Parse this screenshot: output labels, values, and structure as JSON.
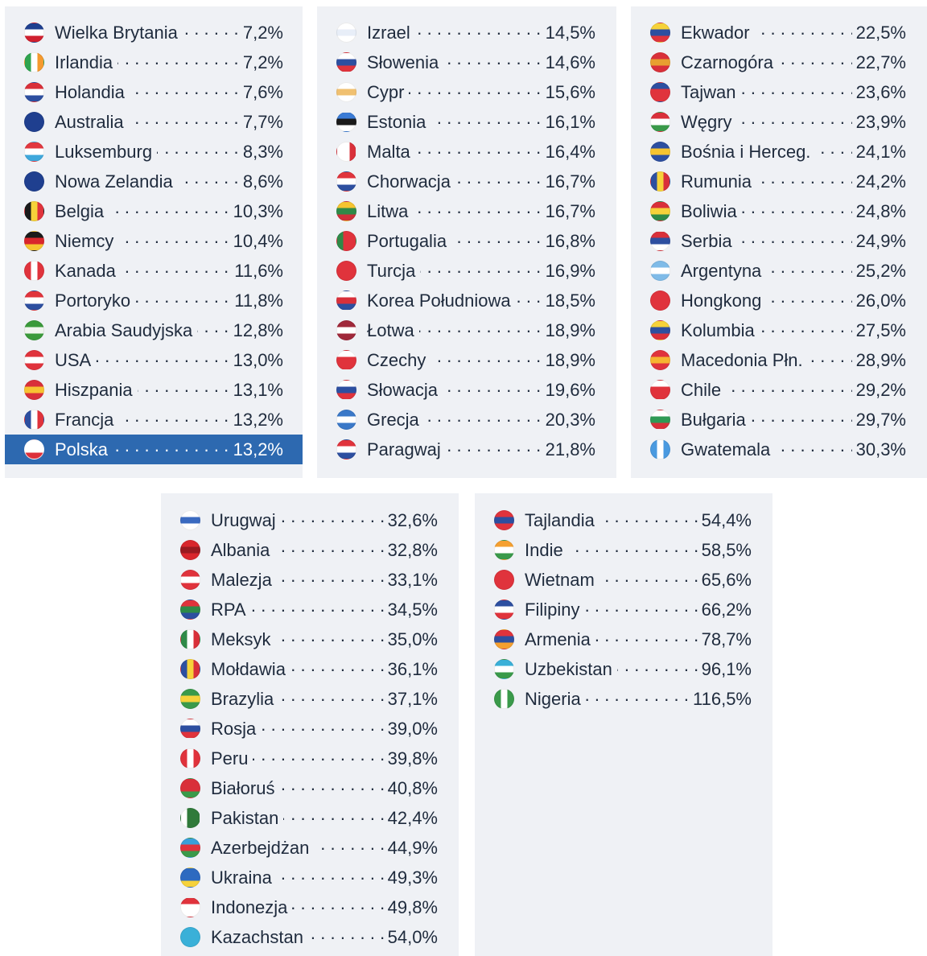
{
  "chart_data": {
    "type": "table",
    "highlight_color": "#2d69b0",
    "panel_color": "#eff1f5",
    "panels": [
      {
        "rows": [
          {
            "country": "Wielka Brytania",
            "value": 7.2,
            "label": "7,2%",
            "flag": [
              "h",
              "#1f3f8f",
              "#ffffff",
              "#d0202f"
            ]
          },
          {
            "country": "Irlandia",
            "value": 7.2,
            "label": "7,2%",
            "flag": [
              "v",
              "#2fa44f",
              "#ffffff",
              "#f59a2e"
            ]
          },
          {
            "country": "Holandia",
            "value": 7.6,
            "label": "7,6%",
            "flag": [
              "h",
              "#d9303a",
              "#ffffff",
              "#2d4fa0"
            ]
          },
          {
            "country": "Australia",
            "value": 7.7,
            "label": "7,7%",
            "flag": [
              "h",
              "#1f3f8f",
              "#1f3f8f",
              "#1f3f8f"
            ]
          },
          {
            "country": "Luksemburg",
            "value": 8.3,
            "label": "8,3%",
            "flag": [
              "h",
              "#e2373f",
              "#ffffff",
              "#3fa8dc"
            ]
          },
          {
            "country": "Nowa Zelandia",
            "value": 8.6,
            "label": "8,6%",
            "flag": [
              "h",
              "#1f3f8f",
              "#1f3f8f",
              "#1f3f8f"
            ]
          },
          {
            "country": "Belgia",
            "value": 10.3,
            "label": "10,3%",
            "flag": [
              "v",
              "#1a1a1a",
              "#f6d23a",
              "#e0333c"
            ]
          },
          {
            "country": "Niemcy",
            "value": 10.4,
            "label": "10,4%",
            "flag": [
              "h",
              "#1a1a1a",
              "#d9262c",
              "#f6c430"
            ]
          },
          {
            "country": "Kanada",
            "value": 11.6,
            "label": "11,6%",
            "flag": [
              "v",
              "#e0333c",
              "#ffffff",
              "#e0333c"
            ]
          },
          {
            "country": "Portoryko",
            "value": 11.8,
            "label": "11,8%",
            "flag": [
              "h",
              "#e0333c",
              "#ffffff",
              "#2d4fa0"
            ]
          },
          {
            "country": "Arabia Saudyjska",
            "value": 12.8,
            "label": "12,8%",
            "flag": [
              "h",
              "#3a9a3a",
              "#f0f5ee",
              "#3a9a3a"
            ]
          },
          {
            "country": "USA",
            "value": 13.0,
            "label": "13,0%",
            "flag": [
              "h",
              "#e0333c",
              "#ffffff",
              "#e0333c"
            ]
          },
          {
            "country": "Hiszpania",
            "value": 13.1,
            "label": "13,1%",
            "flag": [
              "h",
              "#d9303a",
              "#f7c332",
              "#d9303a"
            ]
          },
          {
            "country": "Francja",
            "value": 13.2,
            "label": "13,2%",
            "flag": [
              "v",
              "#2d4fa0",
              "#ffffff",
              "#e0333c"
            ]
          },
          {
            "country": "Polska",
            "value": 13.2,
            "label": "13,2%",
            "flag": [
              "h",
              "#ffffff",
              "#ffffff",
              "#dc2f3a"
            ],
            "highlight": true
          }
        ]
      },
      {
        "rows": [
          {
            "country": "Izrael",
            "value": 14.5,
            "label": "14,5%",
            "flag": [
              "h",
              "#ffffff",
              "#e8eef8",
              "#ffffff"
            ]
          },
          {
            "country": "Słowenia",
            "value": 14.6,
            "label": "14,6%",
            "flag": [
              "h",
              "#ffffff",
              "#2d4fa0",
              "#e0333c"
            ]
          },
          {
            "country": "Cypr",
            "value": 15.6,
            "label": "15,6%",
            "flag": [
              "h",
              "#ffffff",
              "#f0c070",
              "#ffffff"
            ]
          },
          {
            "country": "Estonia",
            "value": 16.1,
            "label": "16,1%",
            "flag": [
              "h",
              "#3a7bd5",
              "#1a1a1a",
              "#ffffff"
            ]
          },
          {
            "country": "Malta",
            "value": 16.4,
            "label": "16,4%",
            "flag": [
              "v",
              "#ffffff",
              "#ffffff",
              "#d9303a"
            ]
          },
          {
            "country": "Chorwacja",
            "value": 16.7,
            "label": "16,7%",
            "flag": [
              "h",
              "#e0333c",
              "#ffffff",
              "#2d4fa0"
            ]
          },
          {
            "country": "Litwa",
            "value": 16.7,
            "label": "16,7%",
            "flag": [
              "h",
              "#f6c430",
              "#2f8a48",
              "#d0303a"
            ]
          },
          {
            "country": "Portugalia",
            "value": 16.8,
            "label": "16,8%",
            "flag": [
              "v",
              "#2f8a48",
              "#e0333c",
              "#e0333c"
            ]
          },
          {
            "country": "Turcja",
            "value": 16.9,
            "label": "16,9%",
            "flag": [
              "h",
              "#e0333c",
              "#e0333c",
              "#e0333c"
            ]
          },
          {
            "country": "Korea Południowa",
            "value": 18.5,
            "label": "18,5%",
            "flag": [
              "h",
              "#ffffff",
              "#d9303a",
              "#2d4fa0"
            ]
          },
          {
            "country": "Łotwa",
            "value": 18.9,
            "label": "18,9%",
            "flag": [
              "h",
              "#a0283a",
              "#ffffff",
              "#a0283a"
            ]
          },
          {
            "country": "Czechy",
            "value": 18.9,
            "label": "18,9%",
            "flag": [
              "h",
              "#ffffff",
              "#e0333c",
              "#e0333c"
            ]
          },
          {
            "country": "Słowacja",
            "value": 19.6,
            "label": "19,6%",
            "flag": [
              "h",
              "#ffffff",
              "#2d4fa0",
              "#e0333c"
            ]
          },
          {
            "country": "Grecja",
            "value": 20.3,
            "label": "20,3%",
            "flag": [
              "h",
              "#3a78c8",
              "#ffffff",
              "#3a78c8"
            ]
          },
          {
            "country": "Paragwaj",
            "value": 21.8,
            "label": "21,8%",
            "flag": [
              "h",
              "#e0333c",
              "#ffffff",
              "#2d4fa0"
            ]
          }
        ]
      },
      {
        "rows": [
          {
            "country": "Ekwador",
            "value": 22.5,
            "label": "22,5%",
            "flag": [
              "h",
              "#f6d23a",
              "#2d4fa0",
              "#e0333c"
            ]
          },
          {
            "country": "Czarnogóra",
            "value": 22.7,
            "label": "22,7%",
            "flag": [
              "h",
              "#d9303a",
              "#e8a030",
              "#d9303a"
            ]
          },
          {
            "country": "Tajwan",
            "value": 23.6,
            "label": "23,6%",
            "flag": [
              "h",
              "#2d4fa0",
              "#e0333c",
              "#e0333c"
            ]
          },
          {
            "country": "Węgry",
            "value": 23.9,
            "label": "23,9%",
            "flag": [
              "h",
              "#d9303a",
              "#ffffff",
              "#3a9a4a"
            ]
          },
          {
            "country": "Bośnia i Herceg.",
            "value": 24.1,
            "label": "24,1%",
            "flag": [
              "h",
              "#2d4fa0",
              "#f6c430",
              "#2d4fa0"
            ]
          },
          {
            "country": "Rumunia",
            "value": 24.2,
            "label": "24,2%",
            "flag": [
              "v",
              "#2d4fa0",
              "#f6d23a",
              "#d9303a"
            ]
          },
          {
            "country": "Boliwia",
            "value": 24.8,
            "label": "24,8%",
            "flag": [
              "h",
              "#d9303a",
              "#f6d23a",
              "#2f8a48"
            ]
          },
          {
            "country": "Serbia",
            "value": 24.9,
            "label": "24,9%",
            "flag": [
              "h",
              "#d9303a",
              "#2d4fa0",
              "#ffffff"
            ]
          },
          {
            "country": "Argentyna",
            "value": 25.2,
            "label": "25,2%",
            "flag": [
              "h",
              "#7fbbe8",
              "#ffffff",
              "#7fbbe8"
            ]
          },
          {
            "country": "Hongkong",
            "value": 26.0,
            "label": "26,0%",
            "flag": [
              "h",
              "#e0333c",
              "#e0333c",
              "#e0333c"
            ]
          },
          {
            "country": "Kolumbia",
            "value": 27.5,
            "label": "27,5%",
            "flag": [
              "h",
              "#f6d23a",
              "#2d4fa0",
              "#d9303a"
            ]
          },
          {
            "country": "Macedonia Płn.",
            "value": 28.9,
            "label": "28,9%",
            "flag": [
              "h",
              "#e0333c",
              "#f6b430",
              "#e0333c"
            ]
          },
          {
            "country": "Chile",
            "value": 29.2,
            "label": "29,2%",
            "flag": [
              "h",
              "#ffffff",
              "#e0333c",
              "#e0333c"
            ]
          },
          {
            "country": "Bułgaria",
            "value": 29.7,
            "label": "29,7%",
            "flag": [
              "h",
              "#ffffff",
              "#2f9a55",
              "#d9303a"
            ]
          },
          {
            "country": "Gwatemala",
            "value": 30.3,
            "label": "30,3%",
            "flag": [
              "v",
              "#4a9ae0",
              "#ffffff",
              "#4a9ae0"
            ]
          }
        ]
      },
      {
        "rows": [
          {
            "country": "Urugwaj",
            "value": 32.6,
            "label": "32,6%",
            "flag": [
              "h",
              "#ffffff",
              "#3a6ac0",
              "#ffffff"
            ]
          },
          {
            "country": "Albania",
            "value": 32.8,
            "label": "32,8%",
            "flag": [
              "h",
              "#d9262c",
              "#9a1a20",
              "#d9262c"
            ]
          },
          {
            "country": "Malezja",
            "value": 33.1,
            "label": "33,1%",
            "flag": [
              "h",
              "#e0333c",
              "#ffffff",
              "#e0333c"
            ]
          },
          {
            "country": "RPA",
            "value": 34.5,
            "label": "34,5%",
            "flag": [
              "h",
              "#e0333c",
              "#2f8a48",
              "#2d4fa0"
            ]
          },
          {
            "country": "Meksyk",
            "value": 35.0,
            "label": "35,0%",
            "flag": [
              "v",
              "#2f8a48",
              "#ffffff",
              "#d9303a"
            ]
          },
          {
            "country": "Mołdawia",
            "value": 36.1,
            "label": "36,1%",
            "flag": [
              "v",
              "#2d4fa0",
              "#f6d23a",
              "#d9303a"
            ]
          },
          {
            "country": "Brazylia",
            "value": 37.1,
            "label": "37,1%",
            "flag": [
              "h",
              "#3a9a4a",
              "#f6d23a",
              "#3a9a4a"
            ]
          },
          {
            "country": "Rosja",
            "value": 39.0,
            "label": "39,0%",
            "flag": [
              "h",
              "#ffffff",
              "#2d4fa0",
              "#e0333c"
            ]
          },
          {
            "country": "Peru",
            "value": 39.8,
            "label": "39,8%",
            "flag": [
              "v",
              "#e0333c",
              "#ffffff",
              "#e0333c"
            ]
          },
          {
            "country": "Białoruś",
            "value": 40.8,
            "label": "40,8%",
            "flag": [
              "h",
              "#d9303a",
              "#d9303a",
              "#3a9a4a"
            ]
          },
          {
            "country": "Pakistan",
            "value": 42.4,
            "label": "42,4%",
            "flag": [
              "v",
              "#ffffff",
              "#2f7a3a",
              "#2f7a3a"
            ]
          },
          {
            "country": "Azerbejdżan",
            "value": 44.9,
            "label": "44,9%",
            "flag": [
              "h",
              "#3aa0d8",
              "#e0333c",
              "#3a9a4a"
            ]
          },
          {
            "country": "Ukraina",
            "value": 49.3,
            "label": "49,3%",
            "flag": [
              "h",
              "#2d6ac0",
              "#2d6ac0",
              "#f6d23a"
            ]
          },
          {
            "country": "Indonezja",
            "value": 49.8,
            "label": "49,8%",
            "flag": [
              "h",
              "#e0333c",
              "#ffffff",
              "#ffffff"
            ]
          },
          {
            "country": "Kazachstan",
            "value": 54.0,
            "label": "54,0%",
            "flag": [
              "h",
              "#3ab0d8",
              "#3ab0d8",
              "#3ab0d8"
            ]
          }
        ]
      },
      {
        "rows": [
          {
            "country": "Tajlandia",
            "value": 54.4,
            "label": "54,4%",
            "flag": [
              "h",
              "#e0333c",
              "#2d4fa0",
              "#e0333c"
            ]
          },
          {
            "country": "Indie",
            "value": 58.5,
            "label": "58,5%",
            "flag": [
              "h",
              "#f5a030",
              "#ffffff",
              "#3a9a4a"
            ]
          },
          {
            "country": "Wietnam",
            "value": 65.6,
            "label": "65,6%",
            "flag": [
              "h",
              "#e0333c",
              "#e0333c",
              "#e0333c"
            ]
          },
          {
            "country": "Filipiny",
            "value": 66.2,
            "label": "66,2%",
            "flag": [
              "h",
              "#2d4fa0",
              "#ffffff",
              "#e0333c"
            ]
          },
          {
            "country": "Armenia",
            "value": 78.7,
            "label": "78,7%",
            "flag": [
              "h",
              "#e0333c",
              "#2d4fa0",
              "#f5a030"
            ]
          },
          {
            "country": "Uzbekistan",
            "value": 96.1,
            "label": "96,1%",
            "flag": [
              "h",
              "#3ab0d8",
              "#ffffff",
              "#3a9a4a"
            ]
          },
          {
            "country": "Nigeria",
            "value": 116.5,
            "label": "116,5%",
            "flag": [
              "v",
              "#3a9a4a",
              "#ffffff",
              "#3a9a4a"
            ]
          }
        ]
      }
    ]
  }
}
